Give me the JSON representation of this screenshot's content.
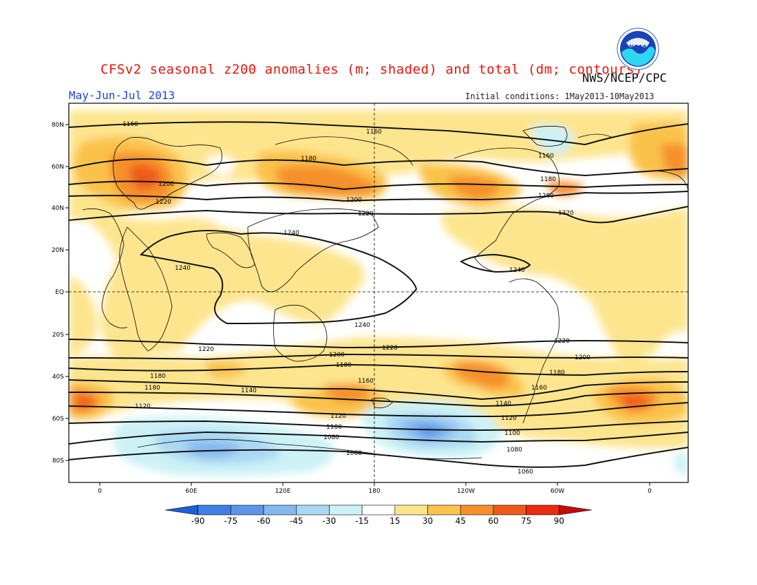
{
  "header": {
    "title": "CFSv2 seasonal z200 anomalies (m; shaded) and total (dm; contours)",
    "org": "NWS/NCEP/CPC",
    "period": "May-Jun-Jul 2013",
    "initial_conditions": "Initial conditions: 1May2013-10May2013",
    "logo_text": "NOAA"
  },
  "axes": {
    "lat_labels": [
      "80N",
      "60N",
      "40N",
      "20N",
      "EQ",
      "20S",
      "40S",
      "60S",
      "80S"
    ],
    "lon_labels": [
      "0",
      "60E",
      "120E",
      "180",
      "120W",
      "60W",
      "0"
    ]
  },
  "colorbar": {
    "values": [
      "-90",
      "-75",
      "-60",
      "-45",
      "-30",
      "-15",
      "15",
      "30",
      "45",
      "60",
      "75",
      "90"
    ],
    "colors": [
      "#1e5fd6",
      "#3f7fe4",
      "#5c96ea",
      "#86b8f0",
      "#aad8f3",
      "#ccf2f6",
      "#ffffff",
      "#fde58e",
      "#fbc24c",
      "#f6902c",
      "#ef5a1a",
      "#ec2a10",
      "#c20a0a"
    ]
  },
  "contour_labels": {
    "c1060": "1060",
    "c1080": "1080",
    "c1100": "1100",
    "c1120": "1120",
    "c1140": "1140",
    "c1160": "1160",
    "c1180": "1180",
    "c1200": "1200",
    "c1220": "1220",
    "c1240": "1240"
  },
  "chart_data": {
    "type": "heatmap",
    "variable": "z200",
    "shaded": "anomalies (m)",
    "contours": "total (dm)",
    "contour_levels": [
      1060,
      1080,
      1100,
      1120,
      1140,
      1160,
      1180,
      1200,
      1220,
      1240
    ],
    "shading_levels": [
      -90,
      -75,
      -60,
      -45,
      -30,
      -15,
      15,
      30,
      45,
      60,
      75,
      90
    ],
    "latitude_range": [
      -90,
      90
    ],
    "longitude_range": [
      "20W",
      "20E"
    ]
  }
}
